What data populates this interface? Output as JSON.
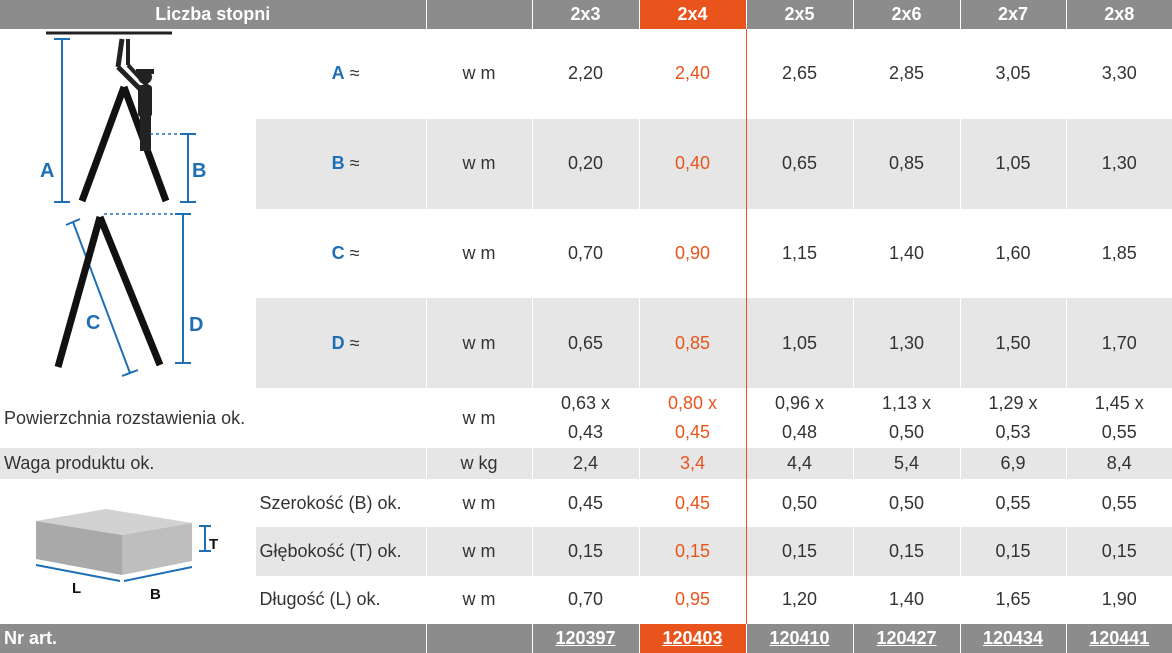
{
  "header": {
    "title": "Liczba stopni",
    "columns": [
      "2x3",
      "2x4",
      "2x5",
      "2x6",
      "2x7",
      "2x8"
    ]
  },
  "diagram_labels": {
    "ladder": [
      "A",
      "B",
      "C",
      "D"
    ],
    "box": [
      "T",
      "L",
      "B"
    ]
  },
  "rows": [
    {
      "label_letter": "A",
      "label_suffix": " ≈",
      "unit": "w m",
      "values": [
        "2,20",
        "2,40",
        "2,65",
        "2,85",
        "3,05",
        "3,30"
      ]
    },
    {
      "label_letter": "B",
      "label_suffix": " ≈",
      "unit": "w m",
      "values": [
        "0,20",
        "0,40",
        "0,65",
        "0,85",
        "1,05",
        "1,30"
      ]
    },
    {
      "label_letter": "C",
      "label_suffix": " ≈",
      "unit": "w m",
      "values": [
        "0,70",
        "0,90",
        "1,15",
        "1,40",
        "1,60",
        "1,85"
      ]
    },
    {
      "label_letter": "D",
      "label_suffix": " ≈",
      "unit": "w m",
      "values": [
        "0,65",
        "0,85",
        "1,05",
        "1,30",
        "1,50",
        "1,70"
      ]
    }
  ],
  "surface": {
    "label": "Powierzchnia rozstawienia ok.",
    "unit": "w m",
    "line1": [
      "0,63 x",
      "0,80 x",
      "0,96 x",
      "1,13 x",
      "1,29 x",
      "1,45 x"
    ],
    "line2": [
      "0,43",
      "0,45",
      "0,48",
      "0,50",
      "0,53",
      "0,55"
    ]
  },
  "weight": {
    "label": "Waga produktu ok.",
    "unit": "w kg",
    "values": [
      "2,4",
      "3,4",
      "4,4",
      "5,4",
      "6,9",
      "8,4"
    ]
  },
  "package": [
    {
      "label": "Szerokość (B) ok.",
      "unit": "w m",
      "values": [
        "0,45",
        "0,45",
        "0,50",
        "0,50",
        "0,55",
        "0,55"
      ]
    },
    {
      "label": "Głębokość (T) ok.",
      "unit": "w m",
      "values": [
        "0,15",
        "0,15",
        "0,15",
        "0,15",
        "0,15",
        "0,15"
      ]
    },
    {
      "label": "Długość (L) ok.",
      "unit": "w m",
      "values": [
        "0,70",
        "0,95",
        "1,20",
        "1,40",
        "1,65",
        "1,90"
      ]
    }
  ],
  "footer": {
    "label": "Nr art.",
    "articles": [
      "120397",
      "120403",
      "120410",
      "120427",
      "120434",
      "120441"
    ]
  },
  "colors": {
    "accent": "#e8541c",
    "header_gray": "#8c8c8c",
    "row_gray": "#e6e6e6",
    "diagram_blue": "#1f6fb5"
  }
}
